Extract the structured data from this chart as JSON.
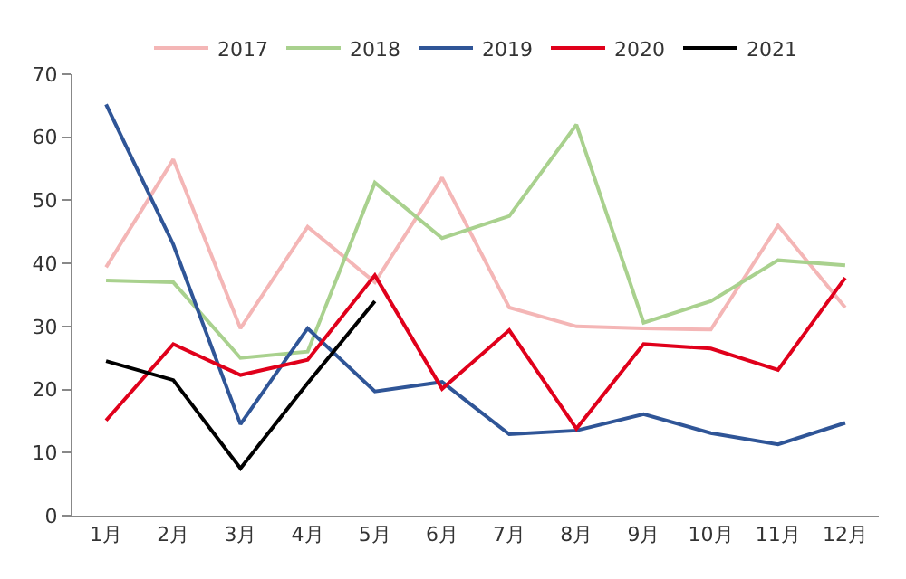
{
  "chart_data": {
    "type": "line",
    "categories": [
      "1月",
      "2月",
      "3月",
      "4月",
      "5月",
      "6月",
      "7月",
      "8月",
      "9月",
      "10月",
      "11月",
      "12月"
    ],
    "series": [
      {
        "name": "2017",
        "color": "#f4b6b6",
        "values": [
          39.4,
          56.5,
          29.7,
          45.8,
          37,
          53.6,
          33,
          30,
          29.7,
          29.5,
          46,
          33
        ]
      },
      {
        "name": "2018",
        "color": "#a9d18e",
        "values": [
          37.3,
          37,
          25,
          26,
          52.8,
          44,
          47.5,
          62,
          30.6,
          34,
          40.5,
          39.7
        ]
      },
      {
        "name": "2019",
        "color": "#2f5597",
        "values": [
          65.2,
          43,
          14.5,
          29.7,
          19.7,
          21.2,
          12.9,
          13.5,
          16.1,
          13.1,
          11.3,
          14.7
        ]
      },
      {
        "name": "2020",
        "color": "#e0001b",
        "values": [
          15.1,
          27.2,
          22.3,
          24.7,
          38.1,
          20.1,
          29.4,
          13.8,
          27.2,
          26.5,
          23.1,
          37.7
        ]
      },
      {
        "name": "2021",
        "color": "#000000",
        "values": [
          24.5,
          21.5,
          7.5,
          21,
          34,
          null,
          null,
          null,
          null,
          null,
          null,
          null
        ]
      }
    ],
    "ylim": [
      0,
      70
    ],
    "yticks": [
      0,
      10,
      20,
      30,
      40,
      50,
      60,
      70
    ],
    "grid": false,
    "legend": "top",
    "marker": "none",
    "line_style": "solid"
  }
}
